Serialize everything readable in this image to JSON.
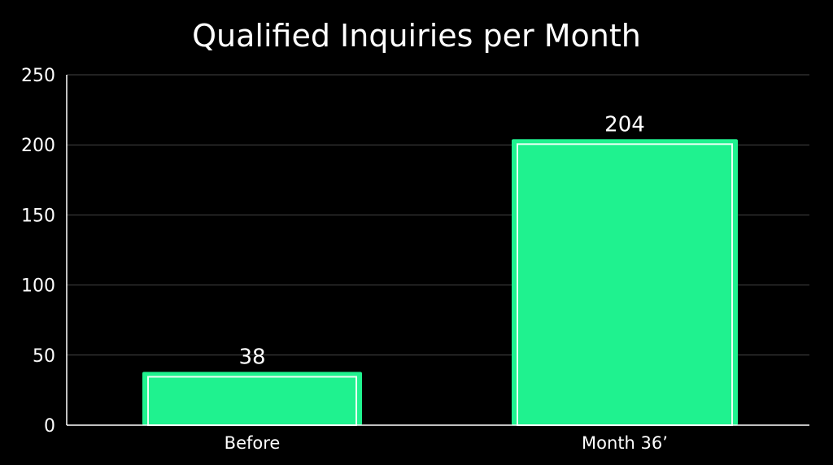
{
  "chart_data": {
    "type": "bar",
    "title": "Qualified Inquiries per Month",
    "xlabel": "",
    "ylabel": "",
    "categories": [
      "Before",
      "Month 36’"
    ],
    "values": [
      38,
      204
    ],
    "data_labels": [
      "38",
      "204"
    ],
    "ylim": [
      0,
      250
    ],
    "yticks": [
      0,
      50,
      100,
      150,
      200,
      250
    ],
    "grid": true,
    "legend": "none"
  },
  "colors": {
    "background": "#000000",
    "bar_fill": "#1ff28f",
    "bar_inner_stroke": "#e8fff2",
    "grid": "#444444",
    "axis": "#ffffff",
    "text": "#ffffff"
  }
}
